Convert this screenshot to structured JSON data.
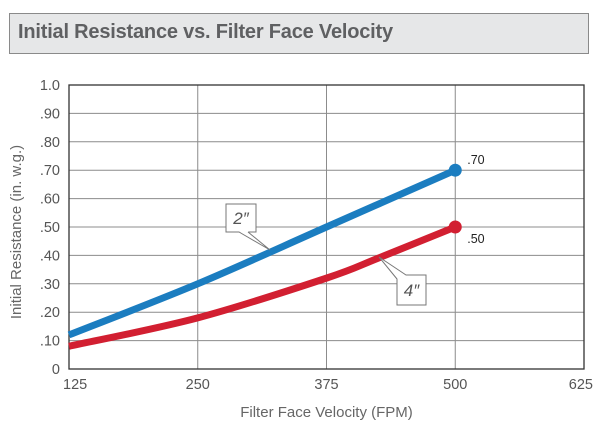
{
  "chart_data": {
    "type": "line",
    "title": "Initial Resistance vs. Filter Face Velocity",
    "xlabel": "Filter Face Velocity (FPM)",
    "ylabel": "Initial Resistance (in. w.g.)",
    "xlim": [
      125,
      625
    ],
    "ylim": [
      0,
      1.0
    ],
    "x_ticks": [
      125,
      250,
      375,
      500,
      625
    ],
    "x_tick_labels": [
      "125",
      "250",
      "375",
      "500",
      "625"
    ],
    "y_ticks": [
      0,
      0.1,
      0.2,
      0.3,
      0.4,
      0.5,
      0.6,
      0.7,
      0.8,
      0.9,
      1.0
    ],
    "y_tick_labels": [
      "0",
      ".10",
      ".20",
      ".30",
      ".40",
      ".50",
      ".60",
      ".70",
      ".80",
      ".90",
      "1.0"
    ],
    "grid": true,
    "series": [
      {
        "name": "2″",
        "color": "#1b7dc0",
        "x": [
          125,
          250,
          375,
          500
        ],
        "y": [
          0.12,
          0.3,
          0.5,
          0.7
        ],
        "end_label": ".70"
      },
      {
        "name": "4″",
        "color": "#d21f31",
        "x": [
          125,
          250,
          375,
          425,
          500
        ],
        "y": [
          0.08,
          0.18,
          0.32,
          0.39,
          0.5
        ],
        "end_label": ".50"
      }
    ]
  }
}
